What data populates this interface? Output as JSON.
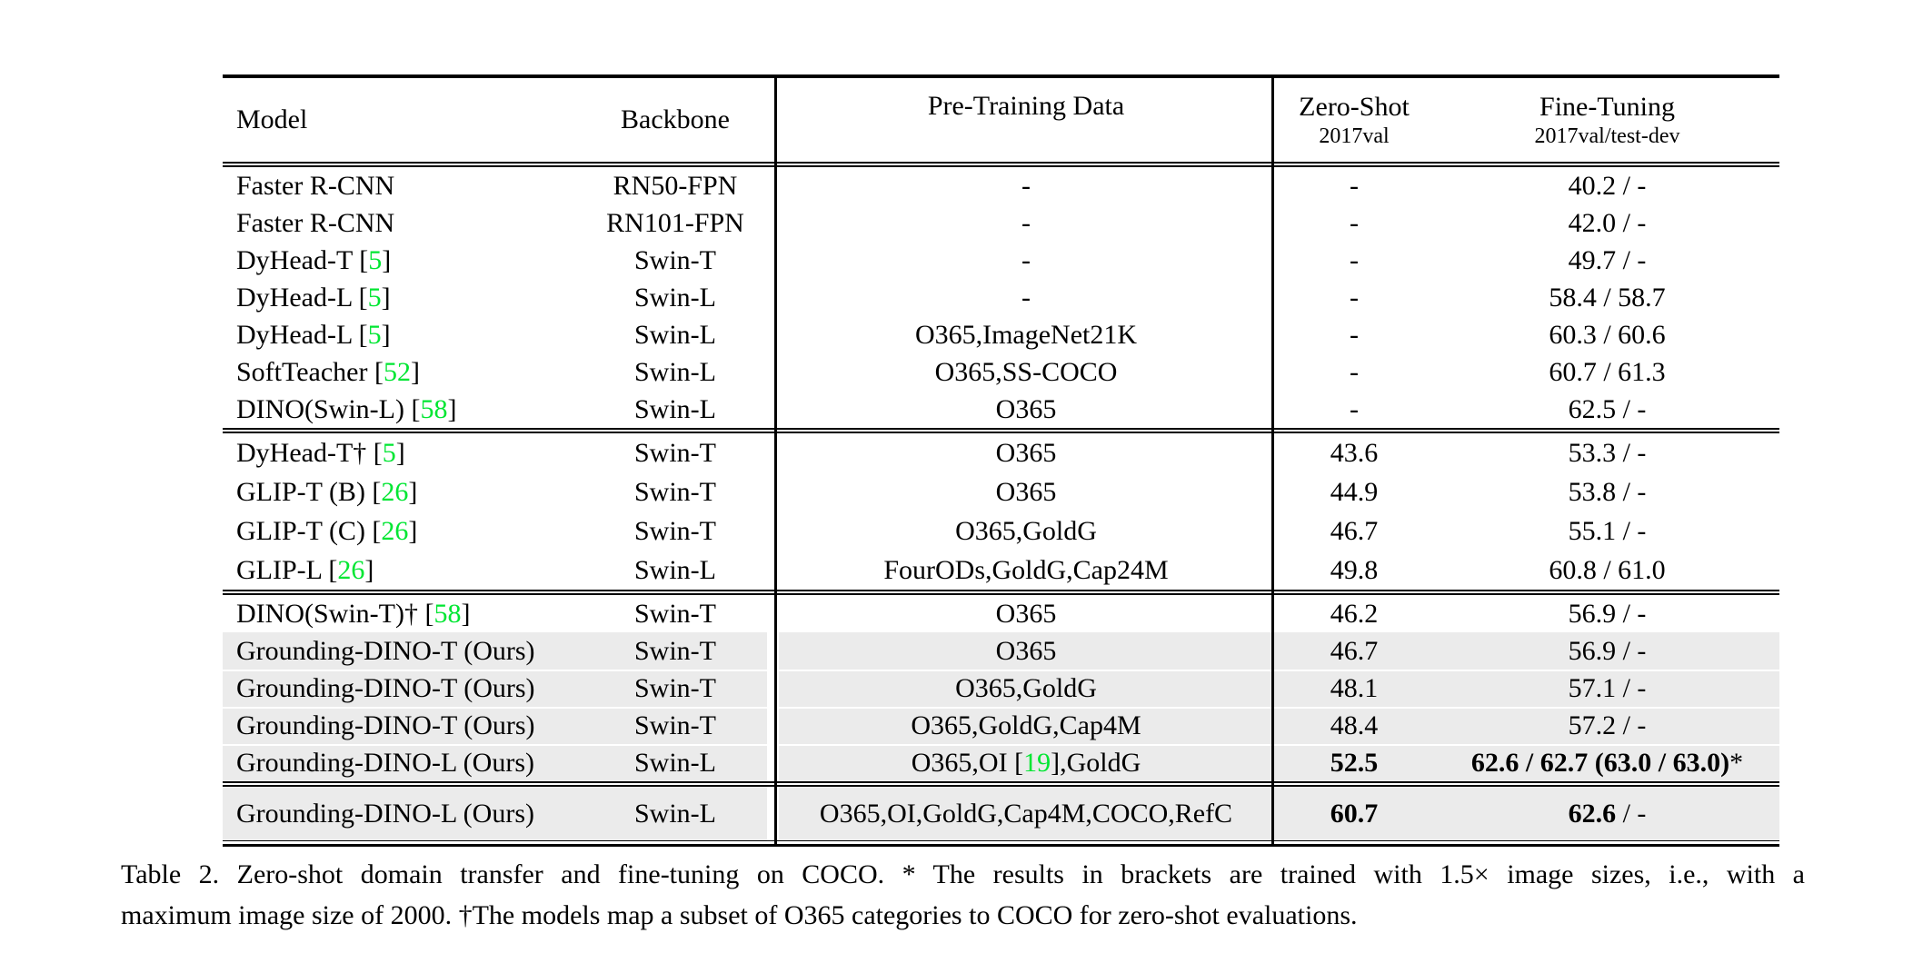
{
  "colors": {
    "citation_green": "#00e632",
    "row_highlight": "#ebebeb",
    "rule_black": "#000000"
  },
  "header": {
    "model": "Model",
    "backbone": "Backbone",
    "pretraining": "Pre-Training Data",
    "zero_shot": {
      "title": "Zero-Shot",
      "subtitle": "2017val"
    },
    "fine_tuning": {
      "title": "Fine-Tuning",
      "subtitle": "2017val/test-dev"
    }
  },
  "groups": [
    {
      "rows": [
        {
          "model": "Faster R-CNN",
          "backbone": "RN50-FPN",
          "pre": "-",
          "zs": "-",
          "ft": "40.2 / -",
          "hl": false
        },
        {
          "model": "Faster R-CNN",
          "backbone": "RN101-FPN",
          "pre": "-",
          "zs": "-",
          "ft": "42.0 / -",
          "hl": false
        },
        {
          "model": [
            {
              "t": "DyHead-T ["
            },
            {
              "t": "5",
              "cite": true
            },
            {
              "t": "]"
            }
          ],
          "backbone": "Swin-T",
          "pre": "-",
          "zs": "-",
          "ft": "49.7 / -",
          "hl": false
        },
        {
          "model": [
            {
              "t": "DyHead-L ["
            },
            {
              "t": "5",
              "cite": true
            },
            {
              "t": "]"
            }
          ],
          "backbone": "Swin-L",
          "pre": "-",
          "zs": "-",
          "ft": "58.4 / 58.7",
          "hl": false
        },
        {
          "model": [
            {
              "t": "DyHead-L ["
            },
            {
              "t": "5",
              "cite": true
            },
            {
              "t": "]"
            }
          ],
          "backbone": "Swin-L",
          "pre": "O365,ImageNet21K",
          "zs": "-",
          "ft": "60.3 / 60.6",
          "hl": false
        },
        {
          "model": [
            {
              "t": "SoftTeacher ["
            },
            {
              "t": "52",
              "cite": true
            },
            {
              "t": "]"
            }
          ],
          "backbone": "Swin-L",
          "pre": "O365,SS-COCO",
          "zs": "-",
          "ft": "60.7 / 61.3",
          "hl": false
        },
        {
          "model": [
            {
              "t": "DINO(Swin-L) ["
            },
            {
              "t": "58",
              "cite": true
            },
            {
              "t": "]"
            }
          ],
          "backbone": "Swin-L",
          "pre": "O365",
          "zs": "-",
          "ft": "62.5 / -",
          "hl": false
        }
      ]
    },
    {
      "rows": [
        {
          "model": [
            {
              "t": "DyHead-T† ["
            },
            {
              "t": "5",
              "cite": true
            },
            {
              "t": "]"
            }
          ],
          "backbone": "Swin-T",
          "pre": "O365",
          "zs": "43.6",
          "ft": "53.3 / -",
          "hl": false
        },
        {
          "model": [
            {
              "t": "GLIP-T (B) ["
            },
            {
              "t": "26",
              "cite": true
            },
            {
              "t": "]"
            }
          ],
          "backbone": "Swin-T",
          "pre": "O365",
          "zs": "44.9",
          "ft": "53.8 / -",
          "hl": false
        },
        {
          "model": [
            {
              "t": "GLIP-T (C) ["
            },
            {
              "t": "26",
              "cite": true
            },
            {
              "t": "]"
            }
          ],
          "backbone": "Swin-T",
          "pre": "O365,GoldG",
          "zs": "46.7",
          "ft": "55.1 / -",
          "hl": false
        },
        {
          "model": [
            {
              "t": "GLIP-L ["
            },
            {
              "t": "26",
              "cite": true
            },
            {
              "t": "]"
            }
          ],
          "backbone": "Swin-L",
          "pre": "FourODs,GoldG,Cap24M",
          "zs": "49.8",
          "ft": "60.8 / 61.0",
          "hl": false
        }
      ]
    },
    {
      "rows": [
        {
          "model": [
            {
              "t": "DINO(Swin-T)† ["
            },
            {
              "t": "58",
              "cite": true
            },
            {
              "t": "]"
            }
          ],
          "backbone": "Swin-T",
          "pre": "O365",
          "zs": "46.2",
          "ft": "56.9 / -",
          "hl": false
        },
        {
          "model": "Grounding-DINO-T (Ours)",
          "backbone": "Swin-T",
          "pre": "O365",
          "zs": "46.7",
          "ft": "56.9 / -",
          "hl": true
        },
        {
          "model": "Grounding-DINO-T (Ours)",
          "backbone": "Swin-T",
          "pre": "O365,GoldG",
          "zs": "48.1",
          "ft": "57.1 / -",
          "hl": true
        },
        {
          "model": "Grounding-DINO-T (Ours)",
          "backbone": "Swin-T",
          "pre": "O365,GoldG,Cap4M",
          "zs": "48.4",
          "ft": "57.2 / -",
          "hl": true
        },
        {
          "model": "Grounding-DINO-L (Ours)",
          "backbone": "Swin-L",
          "pre": [
            {
              "t": "O365,OI ["
            },
            {
              "t": "19",
              "cite": true
            },
            {
              "t": "],GoldG"
            }
          ],
          "zs": [
            {
              "t": "52.5",
              "bold": true
            }
          ],
          "ft": [
            {
              "t": "62.6 / 62.7 (63.0 / 63.0)",
              "bold": true
            },
            {
              "t": "*"
            }
          ],
          "hl": true
        }
      ]
    },
    {
      "rows": [
        {
          "model": "Grounding-DINO-L (Ours)",
          "backbone": "Swin-L",
          "pre": "O365,OI,GoldG,Cap4M,COCO,RefC",
          "zs": [
            {
              "t": "60.7",
              "bold": true
            }
          ],
          "ft": [
            {
              "t": "62.6",
              "bold": true
            },
            {
              "t": " / -"
            }
          ],
          "hl": true
        }
      ]
    }
  ],
  "caption": {
    "line1": "Table 2.  Zero-shot domain transfer and fine-tuning on COCO. * The results in brackets are trained with 1.5× image sizes, i.e., with a",
    "line2": "maximum image size of 2000. †The models map a subset of O365 categories to COCO for zero-shot evaluations."
  }
}
